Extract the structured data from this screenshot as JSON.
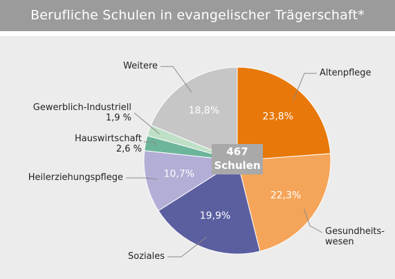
{
  "chart_data": {
    "type": "pie",
    "title": "Berufliche Schulen in evangelischer Trägerschaft*",
    "center_label": "467\nSchulen",
    "categories": [
      "Altenpflege",
      "Gesundheits-\nwesen",
      "Soziales",
      "Heilerziehungspflege",
      "Hauswirtschaft",
      "Gewerblich-Industriell",
      "Weitere"
    ],
    "values": [
      23.8,
      22.3,
      19.9,
      10.7,
      2.6,
      1.9,
      18.8
    ],
    "value_labels": [
      "23,8%",
      "22,3%",
      "19,9%",
      "10,7%",
      "2,6 %",
      "1,9 %",
      "18,8%"
    ],
    "colors": [
      "#e8780a",
      "#f5a55a",
      "#5b5fa0",
      "#b2aed6",
      "#6db59a",
      "#bfe0c6",
      "#c6c6c6"
    ]
  }
}
